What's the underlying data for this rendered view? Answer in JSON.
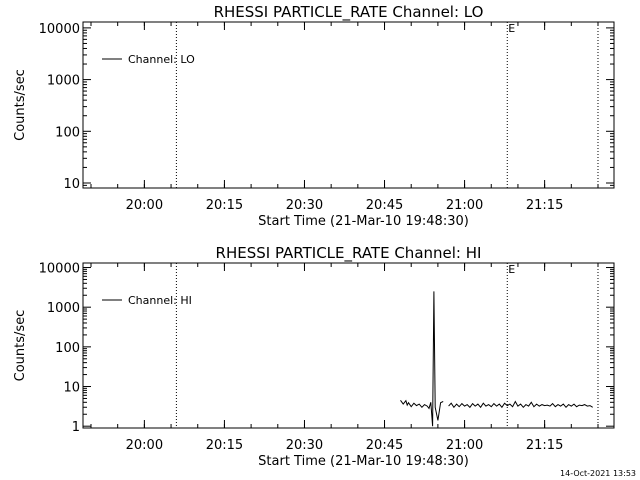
{
  "footer_stamp": "14-Oct-2021 13:53",
  "chart_data": [
    {
      "type": "line",
      "title": "RHESSI PARTICLE_RATE Channel: LO",
      "xlabel": "Start Time (21-Mar-10 19:48:30)",
      "ylabel": "Counts/sec",
      "x_tick_labels": [
        "20:00",
        "20:15",
        "20:30",
        "20:45",
        "21:00",
        "21:15"
      ],
      "y_tick_labels": [
        "10",
        "100",
        "1000",
        "10000"
      ],
      "ylog": true,
      "ylim": [
        8,
        13000
      ],
      "xlim": [
        "19:48:30",
        "21:28:00"
      ],
      "vertical_dotted_lines": [
        "20:06:00",
        "21:08:00",
        "21:25:00"
      ],
      "markers": [
        {
          "text": "E",
          "x": "21:08:00"
        }
      ],
      "legend": {
        "position": "top-left",
        "entries": [
          "Channel: LO"
        ]
      },
      "series": [
        {
          "name": "Channel: LO",
          "points": []
        }
      ]
    },
    {
      "type": "line",
      "title": "RHESSI PARTICLE_RATE Channel: HI",
      "xlabel": "Start Time (21-Mar-10 19:48:30)",
      "ylabel": "Counts/sec",
      "x_tick_labels": [
        "20:00",
        "20:15",
        "20:30",
        "20:45",
        "21:00",
        "21:15"
      ],
      "y_tick_labels": [
        "1",
        "10",
        "100",
        "1000",
        "10000"
      ],
      "ylog": true,
      "ylim": [
        0.9,
        13000
      ],
      "xlim": [
        "19:48:30",
        "21:28:00"
      ],
      "vertical_dotted_lines": [
        "20:06:00",
        "21:08:00",
        "21:25:00"
      ],
      "markers": [
        {
          "text": "E",
          "x": "21:08:00"
        }
      ],
      "legend": {
        "position": "top-left",
        "entries": [
          "Channel: HI"
        ]
      },
      "series": [
        {
          "name": "Channel: HI",
          "segments": [
            [
              [
                "20:48:00",
                4.5
              ],
              [
                "20:48:30",
                3.6
              ],
              [
                "20:49:00",
                4.4
              ],
              [
                "20:49:15",
                3.4
              ],
              [
                "20:49:30",
                3.9
              ],
              [
                "20:50:00",
                3.1
              ],
              [
                "20:50:30",
                3.8
              ],
              [
                "20:51:00",
                3.3
              ],
              [
                "20:51:30",
                3.6
              ],
              [
                "20:52:00",
                3.0
              ],
              [
                "20:52:30",
                3.5
              ],
              [
                "20:53:00",
                3.2
              ],
              [
                "20:53:20",
                2.8
              ],
              [
                "20:53:40",
                4.0
              ],
              [
                "20:54:00",
                1.0
              ],
              [
                "20:54:15",
                2500
              ],
              [
                "20:54:30",
                3.0
              ],
              [
                "20:55:00",
                1.4
              ],
              [
                "20:55:30",
                3.9
              ],
              [
                "20:56:00",
                4.2
              ]
            ],
            [
              [
                "20:57:00",
                3.2
              ],
              [
                "20:57:30",
                3.8
              ],
              [
                "20:58:00",
                3.0
              ],
              [
                "20:58:30",
                3.6
              ],
              [
                "20:59:00",
                3.1
              ],
              [
                "20:59:30",
                3.7
              ],
              [
                "21:00:00",
                3.2
              ],
              [
                "21:00:30",
                3.5
              ],
              [
                "21:01:00",
                3.0
              ],
              [
                "21:01:30",
                3.7
              ],
              [
                "21:02:00",
                3.2
              ],
              [
                "21:02:30",
                3.6
              ],
              [
                "21:03:00",
                3.0
              ],
              [
                "21:03:30",
                3.8
              ],
              [
                "21:04:00",
                3.2
              ],
              [
                "21:04:30",
                3.5
              ],
              [
                "21:05:00",
                3.1
              ],
              [
                "21:05:30",
                3.7
              ],
              [
                "21:06:00",
                3.2
              ],
              [
                "21:06:30",
                3.6
              ],
              [
                "21:07:00",
                3.0
              ],
              [
                "21:07:30",
                3.8
              ],
              [
                "21:08:00",
                3.3
              ],
              [
                "21:08:30",
                3.6
              ],
              [
                "21:09:00",
                3.1
              ],
              [
                "21:09:30",
                4.2
              ],
              [
                "21:10:00",
                3.2
              ],
              [
                "21:10:30",
                3.6
              ],
              [
                "21:11:00",
                3.0
              ],
              [
                "21:11:30",
                3.5
              ],
              [
                "21:12:00",
                3.2
              ],
              [
                "21:12:30",
                4.0
              ],
              [
                "21:13:00",
                3.1
              ],
              [
                "21:13:30",
                3.6
              ],
              [
                "21:14:00",
                3.2
              ],
              [
                "21:14:30",
                3.5
              ],
              [
                "21:15:00",
                3.3
              ],
              [
                "21:15:30",
                3.4
              ],
              [
                "21:16:00",
                3.2
              ],
              [
                "21:16:30",
                3.7
              ],
              [
                "21:17:00",
                3.1
              ],
              [
                "21:17:30",
                3.5
              ],
              [
                "21:18:00",
                3.2
              ],
              [
                "21:18:30",
                3.6
              ],
              [
                "21:19:00",
                3.0
              ],
              [
                "21:19:30",
                3.5
              ],
              [
                "21:20:00",
                3.2
              ],
              [
                "21:20:30",
                3.6
              ],
              [
                "21:21:00",
                3.1
              ],
              [
                "21:21:30",
                3.4
              ],
              [
                "21:22:00",
                3.3
              ],
              [
                "21:22:30",
                3.5
              ],
              [
                "21:23:00",
                3.2
              ],
              [
                "21:23:30",
                3.3
              ],
              [
                "21:24:00",
                3.0
              ]
            ]
          ]
        }
      ]
    }
  ]
}
